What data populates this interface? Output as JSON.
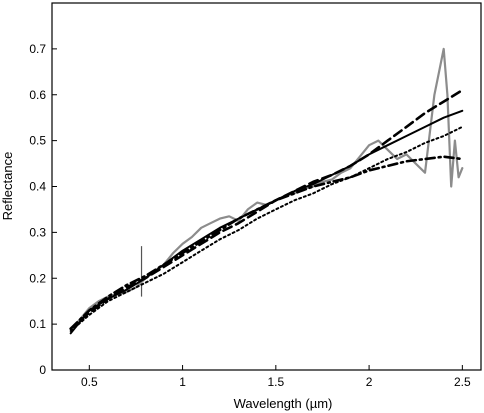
{
  "chart_data": {
    "type": "line",
    "title": "",
    "xlabel": "Wavelength (µm)",
    "ylabel": "Reflectance",
    "xlim": [
      0.3,
      2.6
    ],
    "ylim": [
      0,
      0.8
    ],
    "xticks": [
      0.5,
      1,
      1.5,
      2,
      2.5
    ],
    "xtick_labels": [
      "0.5",
      "1",
      "1.5",
      "2",
      "2.5"
    ],
    "yticks": [
      0,
      0.1,
      0.2,
      0.3,
      0.4,
      0.5,
      0.6,
      0.7
    ],
    "ytick_labels": [
      "0",
      "0.1",
      "0.2",
      "0.3",
      "0.4",
      "0.5",
      "0.6",
      "0.7"
    ],
    "grid": false,
    "legend": "none",
    "series": [
      {
        "style": "gray-solid",
        "color": "#8c8c8c",
        "x": [
          0.4,
          0.45,
          0.5,
          0.55,
          0.6,
          0.65,
          0.7,
          0.75,
          0.8,
          0.85,
          0.9,
          0.95,
          1.0,
          1.05,
          1.1,
          1.15,
          1.2,
          1.25,
          1.3,
          1.35,
          1.4,
          1.45,
          1.5,
          1.55,
          1.6,
          1.65,
          1.7,
          1.75,
          1.8,
          1.85,
          1.9,
          1.95,
          2.0,
          2.05,
          2.1,
          2.15,
          2.2,
          2.25,
          2.3,
          2.35,
          2.38,
          2.4,
          2.42,
          2.44,
          2.46,
          2.48,
          2.5
        ],
        "y": [
          0.09,
          0.11,
          0.135,
          0.15,
          0.16,
          0.165,
          0.17,
          0.18,
          0.2,
          0.215,
          0.23,
          0.255,
          0.275,
          0.29,
          0.31,
          0.32,
          0.33,
          0.335,
          0.325,
          0.35,
          0.365,
          0.36,
          0.37,
          0.38,
          0.385,
          0.395,
          0.4,
          0.41,
          0.415,
          0.43,
          0.44,
          0.465,
          0.49,
          0.5,
          0.48,
          0.46,
          0.47,
          0.45,
          0.43,
          0.6,
          0.66,
          0.7,
          0.6,
          0.4,
          0.5,
          0.42,
          0.44
        ]
      },
      {
        "style": "black-solid",
        "color": "#000000",
        "x": [
          0.4,
          0.5,
          0.6,
          0.7,
          0.8,
          0.9,
          1.0,
          1.1,
          1.2,
          1.3,
          1.4,
          1.5,
          1.6,
          1.7,
          1.8,
          1.9,
          2.0,
          2.1,
          2.2,
          2.3,
          2.4,
          2.5
        ],
        "y": [
          0.08,
          0.13,
          0.155,
          0.175,
          0.2,
          0.23,
          0.26,
          0.285,
          0.31,
          0.33,
          0.35,
          0.37,
          0.39,
          0.405,
          0.425,
          0.445,
          0.47,
          0.49,
          0.51,
          0.53,
          0.55,
          0.565
        ]
      },
      {
        "style": "black-dashed",
        "color": "#000000",
        "x": [
          0.4,
          0.5,
          0.6,
          0.7,
          0.8,
          0.9,
          1.0,
          1.1,
          1.2,
          1.3,
          1.4,
          1.5,
          1.6,
          1.7,
          1.8,
          1.9,
          2.0,
          2.1,
          2.2,
          2.3,
          2.4,
          2.5
        ],
        "y": [
          0.09,
          0.125,
          0.155,
          0.18,
          0.2,
          0.225,
          0.25,
          0.275,
          0.3,
          0.32,
          0.345,
          0.37,
          0.39,
          0.41,
          0.425,
          0.445,
          0.47,
          0.5,
          0.53,
          0.56,
          0.585,
          0.61
        ]
      },
      {
        "style": "black-dotted",
        "color": "#000000",
        "x": [
          0.4,
          0.5,
          0.6,
          0.7,
          0.8,
          0.9,
          1.0,
          1.1,
          1.2,
          1.3,
          1.4,
          1.5,
          1.6,
          1.7,
          1.8,
          1.9,
          2.0,
          2.1,
          2.2,
          2.3,
          2.4,
          2.5
        ],
        "y": [
          0.085,
          0.12,
          0.15,
          0.17,
          0.19,
          0.21,
          0.235,
          0.26,
          0.285,
          0.305,
          0.33,
          0.35,
          0.37,
          0.385,
          0.405,
          0.42,
          0.44,
          0.46,
          0.475,
          0.495,
          0.51,
          0.53
        ]
      },
      {
        "style": "black-dashdot",
        "color": "#000000",
        "x": [
          0.4,
          0.5,
          0.6,
          0.7,
          0.8,
          0.9,
          1.0,
          1.1,
          1.2,
          1.3,
          1.4,
          1.5,
          1.6,
          1.7,
          1.8,
          1.9,
          2.0,
          2.1,
          2.2,
          2.3,
          2.4,
          2.5
        ],
        "y": [
          0.09,
          0.13,
          0.16,
          0.185,
          0.205,
          0.23,
          0.255,
          0.28,
          0.305,
          0.33,
          0.35,
          0.37,
          0.385,
          0.4,
          0.41,
          0.42,
          0.435,
          0.445,
          0.455,
          0.46,
          0.465,
          0.46
        ]
      }
    ],
    "annotations": [
      {
        "type": "vertical-marker",
        "x": 0.78,
        "y_range": [
          0.16,
          0.27
        ],
        "color": "#555555"
      }
    ]
  }
}
